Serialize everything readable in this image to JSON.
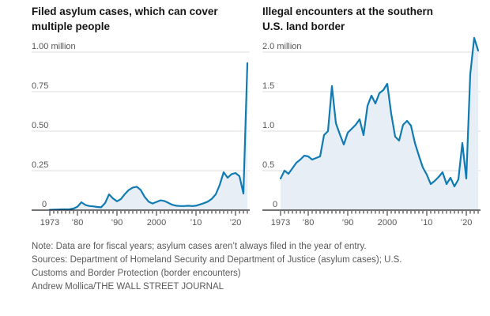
{
  "colors": {
    "line": "#0f7bb2",
    "fill": "#e8eef6",
    "gridline": "#dcdcdc",
    "axis": "#222222",
    "tick": "#222222",
    "axis_label": "#555555",
    "title": "#141414",
    "footnote": "#595959"
  },
  "chart_data": [
    {
      "type": "area",
      "title": "Filed asylum cases, which can cover multiple people",
      "title_lines": [
        "Filed asylum cases, which can cover",
        "multiple people"
      ],
      "unit": "million cases per fiscal year",
      "ylim": [
        0,
        1.0
      ],
      "grid": true,
      "y_gridlines": [
        {
          "value": 1.0,
          "label": "1.00 million"
        },
        {
          "value": 0.75,
          "label": "0.75"
        },
        {
          "value": 0.5,
          "label": "0.50"
        },
        {
          "value": 0.25,
          "label": "0.25"
        },
        {
          "value": 0,
          "label": "0"
        }
      ],
      "x_tick_labels": [
        {
          "year": 1973,
          "label": "1973"
        },
        {
          "year": 1980,
          "label": "’80"
        },
        {
          "year": 1990,
          "label": "’90"
        },
        {
          "year": 2000,
          "label": "2000"
        },
        {
          "year": 2010,
          "label": "’10"
        },
        {
          "year": 2020,
          "label": "’20"
        }
      ],
      "x_start_year": 1973,
      "x_end_year": 2023,
      "values": [
        0.002,
        0.003,
        0.004,
        0.005,
        0.005,
        0.006,
        0.01,
        0.022,
        0.05,
        0.033,
        0.026,
        0.024,
        0.02,
        0.018,
        0.045,
        0.1,
        0.074,
        0.056,
        0.07,
        0.102,
        0.128,
        0.143,
        0.148,
        0.128,
        0.084,
        0.054,
        0.042,
        0.052,
        0.062,
        0.058,
        0.046,
        0.034,
        0.028,
        0.026,
        0.026,
        0.028,
        0.026,
        0.028,
        0.036,
        0.044,
        0.054,
        0.072,
        0.1,
        0.16,
        0.24,
        0.205,
        0.228,
        0.235,
        0.215,
        0.105,
        0.93
      ]
    },
    {
      "type": "area",
      "title": "Illegal encounters at the southern U.S. land border",
      "title_lines": [
        "Illegal encounters at the southern",
        "U.S. land border"
      ],
      "unit": "million encounters per fiscal year",
      "ylim": [
        0,
        2.0
      ],
      "grid": true,
      "y_gridlines": [
        {
          "value": 2.0,
          "label": "2.0 million"
        },
        {
          "value": 1.5,
          "label": "1.5"
        },
        {
          "value": 1.0,
          "label": "1.0"
        },
        {
          "value": 0.5,
          "label": "0.5"
        },
        {
          "value": 0,
          "label": "0"
        }
      ],
      "x_tick_labels": [
        {
          "year": 1973,
          "label": "1973"
        },
        {
          "year": 1980,
          "label": "’80"
        },
        {
          "year": 1990,
          "label": "’90"
        },
        {
          "year": 2000,
          "label": "2000"
        },
        {
          "year": 2010,
          "label": "’10"
        },
        {
          "year": 2020,
          "label": "’20"
        }
      ],
      "x_start_year": 1973,
      "x_end_year": 2023,
      "values": [
        0.4,
        0.5,
        0.46,
        0.53,
        0.6,
        0.64,
        0.69,
        0.68,
        0.64,
        0.66,
        0.68,
        0.95,
        1.0,
        1.57,
        1.1,
        0.96,
        0.83,
        0.98,
        1.03,
        1.08,
        1.15,
        0.95,
        1.32,
        1.45,
        1.35,
        1.48,
        1.52,
        1.6,
        1.22,
        0.93,
        0.88,
        1.08,
        1.13,
        1.07,
        0.85,
        0.69,
        0.54,
        0.45,
        0.33,
        0.37,
        0.42,
        0.48,
        0.33,
        0.41,
        0.3,
        0.39,
        0.85,
        0.4,
        1.72,
        2.18,
        2.02
      ]
    }
  ],
  "footer": {
    "note": "Note: Data are for fiscal years; asylum cases aren’t always filed in the year of entry.",
    "sources": "Sources: Department of Homeland Security and Department of Justice (asylum cases); U.S. Customs and Border Protection (border encounters)",
    "credit": "Andrew Mollica/THE WALL STREET JOURNAL"
  }
}
